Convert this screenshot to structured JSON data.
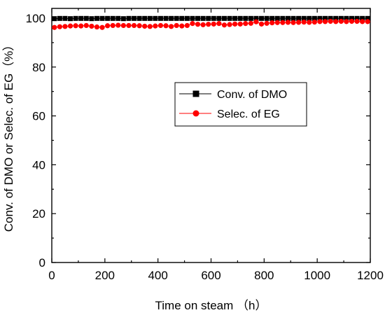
{
  "chart_data": {
    "type": "line",
    "xlabel": "Time on steam （h）",
    "ylabel": "Conv. of DMO or Selec. of EG（%）",
    "xlim": [
      0,
      1200
    ],
    "ylim": [
      0,
      104
    ],
    "x_ticks": [
      0,
      200,
      400,
      600,
      800,
      1000,
      1200
    ],
    "y_ticks": [
      0,
      20,
      40,
      60,
      80,
      100
    ],
    "legend_position": "center-right",
    "grid": false,
    "series": [
      {
        "name": "Conv. of DMO",
        "color": "#000000",
        "marker": "square",
        "x": [
          10,
          30,
          50,
          70,
          90,
          110,
          130,
          150,
          170,
          190,
          210,
          230,
          250,
          270,
          290,
          310,
          330,
          350,
          370,
          390,
          410,
          430,
          450,
          470,
          490,
          510,
          530,
          550,
          570,
          590,
          610,
          630,
          650,
          670,
          690,
          710,
          730,
          750,
          770,
          790,
          810,
          830,
          850,
          870,
          890,
          910,
          930,
          950,
          970,
          990,
          1010,
          1030,
          1050,
          1070,
          1090,
          1110,
          1130,
          1150,
          1170,
          1190
        ],
        "values": [
          99.8,
          99.9,
          99.9,
          99.8,
          99.9,
          99.9,
          99.9,
          99.8,
          99.9,
          99.9,
          99.9,
          99.9,
          99.9,
          99.8,
          99.9,
          99.9,
          99.9,
          99.9,
          99.9,
          99.9,
          99.9,
          99.9,
          99.9,
          99.9,
          99.9,
          99.9,
          99.9,
          99.9,
          99.9,
          99.9,
          99.9,
          99.9,
          99.9,
          99.9,
          99.9,
          99.9,
          99.9,
          99.9,
          99.9,
          99.9,
          99.9,
          99.9,
          99.9,
          99.9,
          99.9,
          99.9,
          99.9,
          99.9,
          99.9,
          99.9,
          99.9,
          99.9,
          99.9,
          99.9,
          99.9,
          99.9,
          99.9,
          99.9,
          99.9,
          99.9
        ]
      },
      {
        "name": "Selec. of EG",
        "color": "#ff0000",
        "marker": "circle",
        "x": [
          10,
          30,
          50,
          70,
          90,
          110,
          130,
          150,
          170,
          190,
          210,
          230,
          250,
          270,
          290,
          310,
          330,
          350,
          370,
          390,
          410,
          430,
          450,
          470,
          490,
          510,
          530,
          550,
          570,
          590,
          610,
          630,
          650,
          670,
          690,
          710,
          730,
          750,
          770,
          790,
          810,
          830,
          850,
          870,
          890,
          910,
          930,
          950,
          970,
          990,
          1010,
          1030,
          1050,
          1070,
          1090,
          1110,
          1130,
          1150,
          1170,
          1190
        ],
        "values": [
          96.2,
          96.5,
          96.6,
          96.8,
          96.9,
          96.8,
          97.0,
          96.7,
          96.4,
          96.2,
          96.9,
          97.0,
          97.1,
          97.0,
          97.0,
          97.0,
          96.9,
          96.7,
          96.6,
          96.8,
          97.0,
          96.9,
          96.6,
          97.0,
          96.8,
          97.0,
          97.8,
          97.5,
          97.3,
          97.5,
          97.6,
          97.8,
          97.2,
          97.4,
          97.6,
          97.6,
          97.8,
          97.9,
          98.5,
          97.6,
          97.9,
          98.1,
          98.2,
          98.2,
          98.3,
          98.2,
          98.3,
          98.4,
          98.3,
          98.4,
          98.6,
          98.6,
          98.7,
          98.6,
          98.7,
          98.6,
          98.7,
          98.7,
          98.6,
          98.6
        ]
      }
    ]
  }
}
